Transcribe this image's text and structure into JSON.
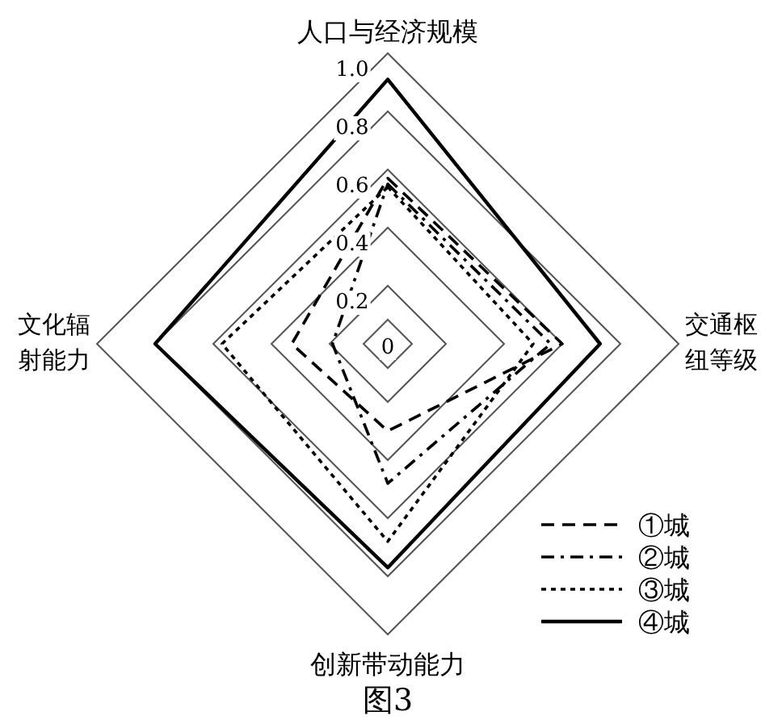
{
  "chart_data": {
    "type": "radar",
    "categories": [
      "人口与经济规模",
      "交通枢纽等级",
      "创新带动能力",
      "文化辐射能力"
    ],
    "ylim": [
      0,
      1
    ],
    "yticks": [
      0,
      0.2,
      0.4,
      0.6,
      0.8,
      {
        "value": 1,
        "label": "1.0"
      }
    ],
    "grid": true,
    "legend": "bottom right",
    "marker": "none",
    "annotations": [
      "图3"
    ],
    "series": [
      {
        "name": "①城",
        "color": "#000000",
        "line_style": "dashed",
        "values": [
          0.57,
          0.6,
          0.3,
          0.33
        ]
      },
      {
        "name": "②城",
        "color": "#000000",
        "line_style": "dashdot",
        "values": [
          0.55,
          0.56,
          0.48,
          0.19
        ]
      },
      {
        "name": "③城",
        "color": "#000000",
        "line_style": "dotted",
        "values": [
          0.54,
          0.5,
          0.68,
          0.57
        ]
      },
      {
        "name": "④城",
        "color": "#000000",
        "line_style": "solid",
        "values": [
          0.91,
          0.73,
          0.77,
          0.8
        ]
      }
    ]
  }
}
